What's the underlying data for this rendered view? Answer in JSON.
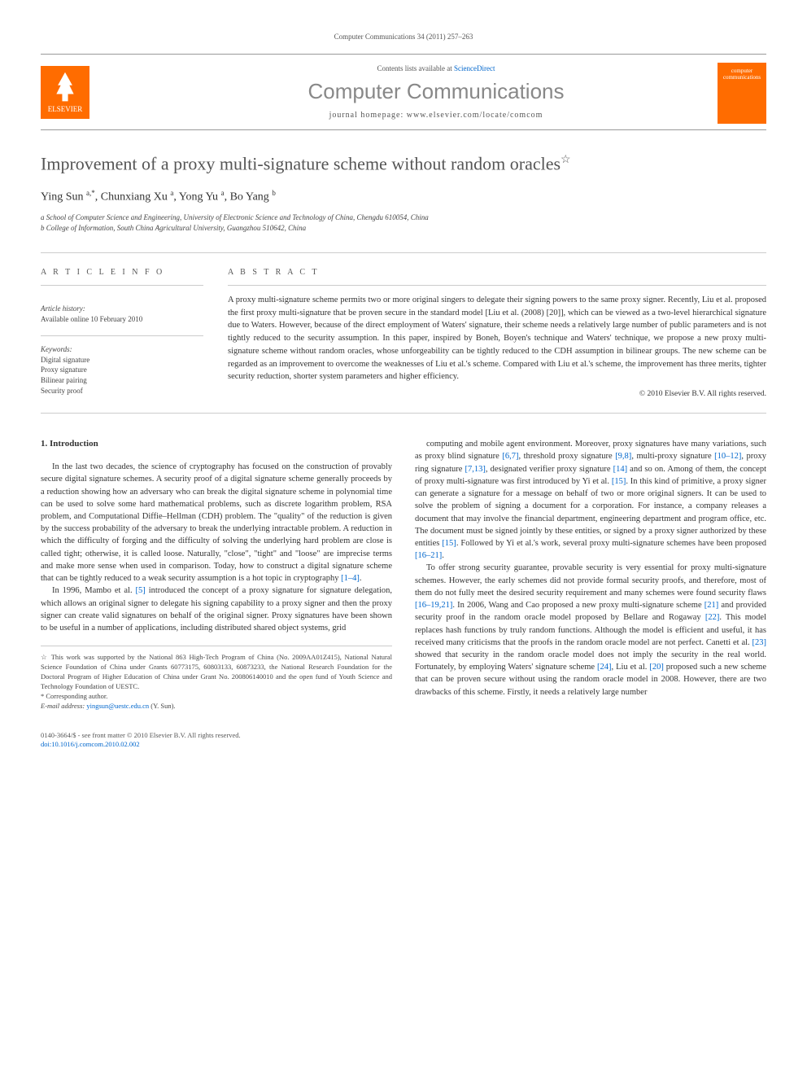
{
  "citation": "Computer Communications 34 (2011) 257–263",
  "header": {
    "contents_text": "Contents lists available at ",
    "contents_link": "ScienceDirect",
    "journal_name": "Computer Communications",
    "homepage_label": "journal homepage: www.elsevier.com/locate/comcom",
    "publisher": "ELSEVIER",
    "cover_text": "computer communications"
  },
  "title": "Improvement of a proxy multi-signature scheme without random oracles",
  "title_note": "☆",
  "authors_html": "Ying Sun <sup>a,*</sup>, Chunxiang Xu <sup>a</sup>, Yong Yu <sup>a</sup>, Bo Yang <sup>b</sup>",
  "affiliations": [
    "a School of Computer Science and Engineering, University of Electronic Science and Technology of China, Chengdu 610054, China",
    "b College of Information, South China Agricultural University, Guangzhou 510642, China"
  ],
  "article_info": {
    "heading": "A R T I C L E   I N F O",
    "history_label": "Article history:",
    "history_text": "Available online 10 February 2010",
    "keywords_label": "Keywords:",
    "keywords": [
      "Digital signature",
      "Proxy signature",
      "Bilinear pairing",
      "Security proof"
    ]
  },
  "abstract": {
    "heading": "A B S T R A C T",
    "text": "A proxy multi-signature scheme permits two or more original singers to delegate their signing powers to the same proxy signer. Recently, Liu et al. proposed the first proxy multi-signature that be proven secure in the standard model [Liu et al. (2008) [20]], which can be viewed as a two-level hierarchical signature due to Waters. However, because of the direct employment of Waters' signature, their scheme needs a relatively large number of public parameters and is not tightly reduced to the security assumption. In this paper, inspired by Boneh, Boyen's technique and Waters' technique, we propose a new proxy multi-signature scheme without random oracles, whose unforgeability can be tightly reduced to the CDH assumption in bilinear groups. The new scheme can be regarded as an improvement to overcome the weaknesses of Liu et al.'s scheme. Compared with Liu et al.'s scheme, the improvement has three merits, tighter security reduction, shorter system parameters and higher efficiency.",
    "copyright": "© 2010 Elsevier B.V. All rights reserved."
  },
  "body": {
    "section_num": "1.",
    "section_title": "Introduction",
    "col1_p1": "In the last two decades, the science of cryptography has focused on the construction of provably secure digital signature schemes. A security proof of a digital signature scheme generally proceeds by a reduction showing how an adversary who can break the digital signature scheme in polynomial time can be used to solve some hard mathematical problems, such as discrete logarithm problem, RSA problem, and Computational Diffie–Hellman (CDH) problem. The \"quality\" of the reduction is given by the success probability of the adversary to break the underlying intractable problem. A reduction in which the difficulty of forging and the difficulty of solving the underlying hard problem are close is called tight; otherwise, it is called loose. Naturally, \"close\", \"tight\" and \"loose\" are imprecise terms and make more sense when used in comparison. Today, how to construct a digital signature scheme that can be tightly reduced to a weak security assumption is a hot topic in cryptography [1–4].",
    "col1_p2": "In 1996, Mambo et al. [5] introduced the concept of a proxy signature for signature delegation, which allows an original signer to delegate his signing capability to a proxy signer and then the proxy signer can create valid signatures on behalf of the original signer. Proxy signatures have been shown to be useful in a number of applications, including distributed shared object systems, grid",
    "col2_p1": "computing and mobile agent environment. Moreover, proxy signatures have many variations, such as proxy blind signature [6,7], threshold proxy signature [9,8], multi-proxy signature [10–12], proxy ring signature [7,13], designated verifier proxy signature [14] and so on. Among of them, the concept of proxy multi-signature was first introduced by Yi et al. [15]. In this kind of primitive, a proxy signer can generate a signature for a message on behalf of two or more original signers. It can be used to solve the problem of signing a document for a corporation. For instance, a company releases a document that may involve the financial department, engineering department and program office, etc. The document must be signed jointly by these entities, or signed by a proxy signer authorized by these entities [15]. Followed by Yi et al.'s work, several proxy multi-signature schemes have been proposed [16–21].",
    "col2_p2": "To offer strong security guarantee, provable security is very essential for proxy multi-signature schemes. However, the early schemes did not provide formal security proofs, and therefore, most of them do not fully meet the desired security requirement and many schemes were found security flaws [16–19,21]. In 2006, Wang and Cao proposed a new proxy multi-signature scheme [21] and provided security proof in the random oracle model proposed by Bellare and Rogaway [22]. This model replaces hash functions by truly random functions. Although the model is efficient and useful, it has received many criticisms that the proofs in the random oracle model are not perfect. Canetti et al. [23] showed that security in the random oracle model does not imply the security in the real world. Fortunately, by employing Waters' signature scheme [24], Liu et al. [20] proposed such a new scheme that can be proven secure without using the random oracle model in 2008. However, there are two drawbacks of this scheme. Firstly, it needs a relatively large number"
  },
  "footnotes": {
    "funding": "☆ This work was supported by the National 863 High-Tech Program of China (No. 2009AA01Z415), National Natural Science Foundation of China under Grants 60773175, 60803133, 60873233, the National Research Foundation for the Doctoral Program of Higher Education of China under Grant No. 200806140010 and the open fund of Youth Science and Technology Foundation of UESTC.",
    "corr_label": "* Corresponding author.",
    "email_label": "E-mail address:",
    "email": "yingsun@uestc.edu.cn",
    "email_name": "(Y. Sun)."
  },
  "footer": {
    "issn": "0140-3664/$ - see front matter © 2010 Elsevier B.V. All rights reserved.",
    "doi": "doi:10.1016/j.comcom.2010.02.002"
  }
}
